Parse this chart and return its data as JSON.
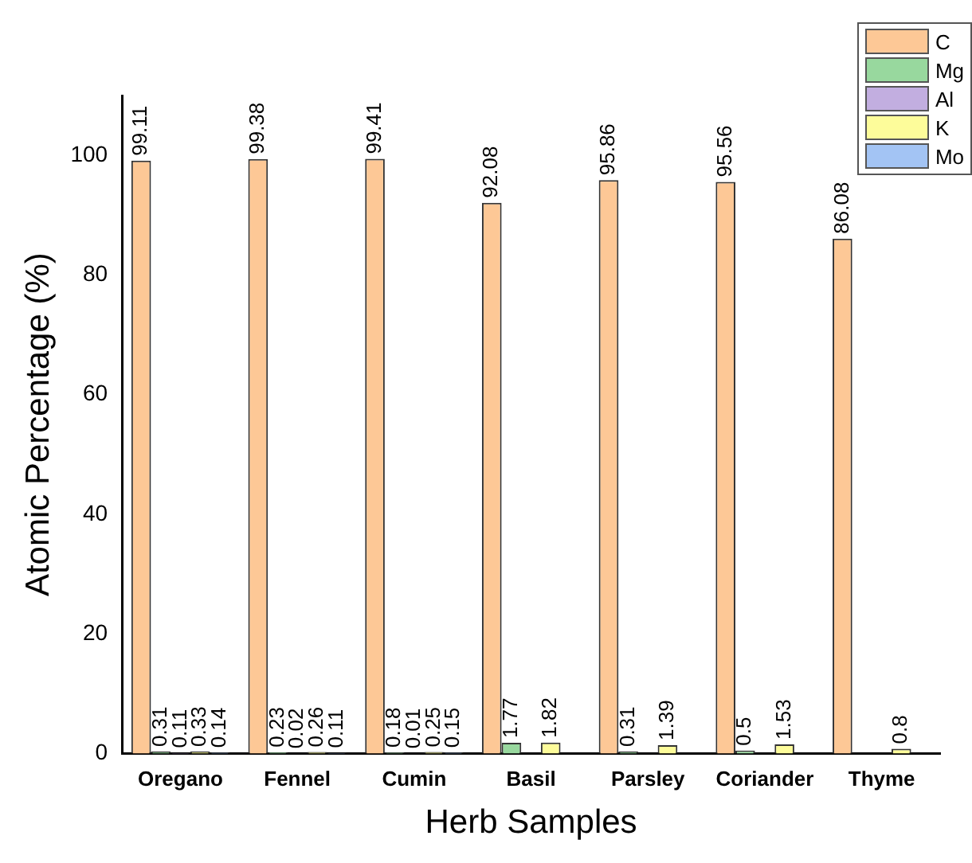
{
  "chart_data": {
    "type": "bar",
    "xlabel": "Herb Samples",
    "ylabel": "Atomic Percentage (%)",
    "categories": [
      "Oregano",
      "Fennel",
      "Cumin",
      "Basil",
      "Parsley",
      "Coriander",
      "Thyme"
    ],
    "series": [
      {
        "name": "C",
        "color": "#fdc896",
        "values": [
          99.11,
          99.38,
          99.41,
          92.08,
          95.86,
          95.56,
          86.08
        ]
      },
      {
        "name": "Mg",
        "color": "#98d89e",
        "values": [
          0.31,
          0.23,
          0.18,
          1.77,
          0.31,
          0.5,
          null
        ]
      },
      {
        "name": "Al",
        "color": "#c2aee0",
        "values": [
          0.11,
          0.02,
          0.01,
          null,
          null,
          null,
          null
        ]
      },
      {
        "name": "K",
        "color": "#fdfc9a",
        "values": [
          0.33,
          0.26,
          0.25,
          1.82,
          1.39,
          1.53,
          0.8
        ]
      },
      {
        "name": "Mo",
        "color": "#a3c4f4",
        "values": [
          0.14,
          0.11,
          0.15,
          null,
          null,
          null,
          null
        ]
      }
    ],
    "ylim": [
      0,
      110
    ],
    "yticks": [
      0,
      20,
      40,
      60,
      80,
      100
    ],
    "grid": false,
    "legend": "top right",
    "data_labels": true
  }
}
